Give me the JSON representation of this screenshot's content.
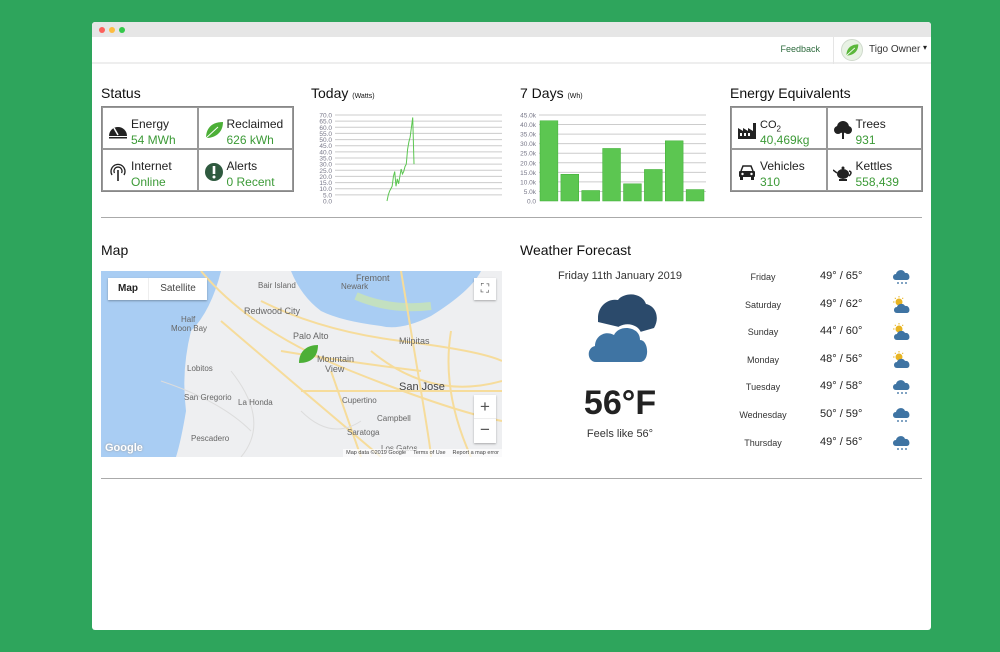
{
  "header": {
    "feedback": "Feedback",
    "user": "Tigo Owner",
    "caret": "▾"
  },
  "status": {
    "title": "Status",
    "items": [
      {
        "icon": "gauge-icon",
        "label": "Energy",
        "value": "54 MWh"
      },
      {
        "icon": "leaf-icon",
        "label": "Reclaimed",
        "value": "626 kWh"
      },
      {
        "icon": "antenna-icon",
        "label": "Internet",
        "value": "Online"
      },
      {
        "icon": "alert-icon",
        "label": "Alerts",
        "value": "0 Recent"
      }
    ]
  },
  "today": {
    "title": "Today",
    "unit": "(Watts)"
  },
  "seven_days": {
    "title": "7 Days",
    "unit": "(Wh)"
  },
  "chart_data": [
    {
      "type": "line",
      "title": "Today",
      "unit": "Watts",
      "ylim": [
        0,
        70
      ],
      "yticks": [
        "0.0",
        "5.0",
        "10.0",
        "15.0",
        "20.0",
        "25.0",
        "30.0",
        "35.0",
        "40.0",
        "45.0",
        "50.0",
        "55.0",
        "60.0",
        "65.0",
        "70.0"
      ],
      "grid": true,
      "color": "#5cc651",
      "values": [
        0,
        5,
        8,
        10,
        12,
        20,
        24,
        12,
        18,
        14,
        20,
        26,
        22,
        24,
        28,
        30,
        42,
        48,
        52,
        60,
        68,
        30
      ]
    },
    {
      "type": "bar",
      "title": "7 Days",
      "unit": "Wh",
      "ylim": [
        0,
        45000
      ],
      "yticks": [
        "0.0",
        "5.0k",
        "10.0k",
        "15.0k",
        "20.0k",
        "25.0k",
        "30.0k",
        "35.0k",
        "40.0k",
        "45.0k"
      ],
      "grid": true,
      "color": "#5cc651",
      "values": [
        42000,
        14000,
        5500,
        27500,
        9000,
        16500,
        31500,
        6000
      ]
    }
  ],
  "equivalents": {
    "title": "Energy Equivalents",
    "items": [
      {
        "icon": "factory-icon",
        "label": "CO",
        "sub": "2",
        "value": "40,469kg"
      },
      {
        "icon": "tree-icon",
        "label": "Trees",
        "value": "931"
      },
      {
        "icon": "car-icon",
        "label": "Vehicles",
        "value": "310"
      },
      {
        "icon": "kettle-icon",
        "label": "Kettles",
        "value": "558,439"
      }
    ]
  },
  "map": {
    "title": "Map",
    "btn_map": "Map",
    "btn_satellite": "Satellite",
    "zoom_in": "+",
    "zoom_out": "−",
    "google": "Google",
    "attrib": "Map data ©2019 Google",
    "terms": "Terms of Use",
    "report": "Report a map error",
    "places": [
      "Fremont",
      "Bair Island",
      "Newark",
      "Redwood City",
      "Half",
      "Moon Bay",
      "Palo Alto",
      "Milpitas",
      "Mountain",
      "View",
      "Lobitos",
      "San Jose",
      "San Gregorio",
      "La Honda",
      "Cupertino",
      "Campbell",
      "Saratoga",
      "Pescadero",
      "Los Gatos"
    ]
  },
  "weather": {
    "title": "Weather Forecast",
    "date": "Friday 11th January 2019",
    "temp": "56°F",
    "feels": "Feels like 56°",
    "icon": "cloudy-icon",
    "forecast": [
      {
        "day": "Friday",
        "temp": "49° / 65°",
        "icon": "rain"
      },
      {
        "day": "Saturday",
        "temp": "49° / 62°",
        "icon": "partly-cloudy"
      },
      {
        "day": "Sunday",
        "temp": "44° / 60°",
        "icon": "partly-cloudy"
      },
      {
        "day": "Monday",
        "temp": "48° / 56°",
        "icon": "partly-cloudy"
      },
      {
        "day": "Tuesday",
        "temp": "49° / 58°",
        "icon": "rain"
      },
      {
        "day": "Wednesday",
        "temp": "50° / 59°",
        "icon": "rain"
      },
      {
        "day": "Thursday",
        "temp": "49° / 56°",
        "icon": "rain"
      }
    ]
  },
  "colors": {
    "accent": "#3c9a37",
    "bar": "#5cc651",
    "background": "#2ea55c",
    "cloud": "#3f74a3",
    "cloud_dark": "#2b4a6b",
    "sun": "#e8b422"
  }
}
